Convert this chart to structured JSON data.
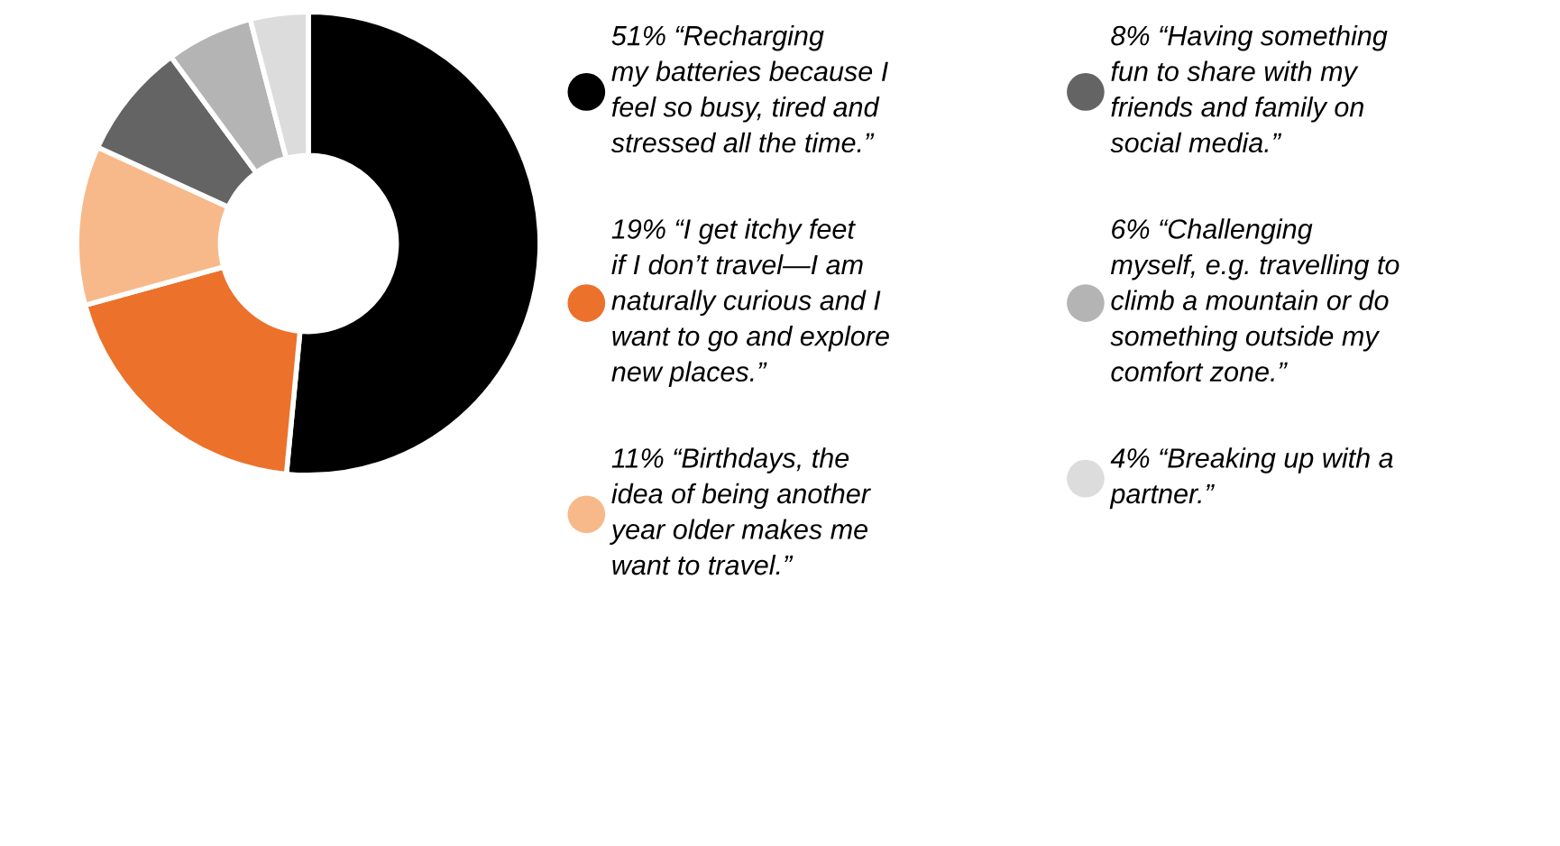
{
  "chart_data": {
    "type": "donut",
    "categories": [
      "“Recharging\nmy batteries because I\nfeel so busy, tired and\nstressed all the time.”",
      "“I get itchy feet\nif I don’t travel—I am\nnaturally curious and I\nwant to go and explore\nnew places.”",
      "“Birthdays, the\nidea of being another\nyear older makes me\nwant to travel.”",
      "“Having something\nfun to share with my\nfriends and family on\nsocial media.”",
      "“Challenging\nmyself, e.g. travelling to\nclimb a mountain or do\nsomething outside my\ncomfort zone.”",
      "“Breaking up with a\npartner.”"
    ],
    "values": [
      51,
      19,
      11,
      8,
      6,
      4
    ],
    "value_labels": [
      "51%",
      "19%",
      "11%",
      "8%",
      "6%",
      "4%"
    ],
    "colors": [
      "#000000",
      "#ec712b",
      "#f7b98a",
      "#646464",
      "#b4b4b4",
      "#dcdcdc"
    ],
    "legend": "right"
  }
}
